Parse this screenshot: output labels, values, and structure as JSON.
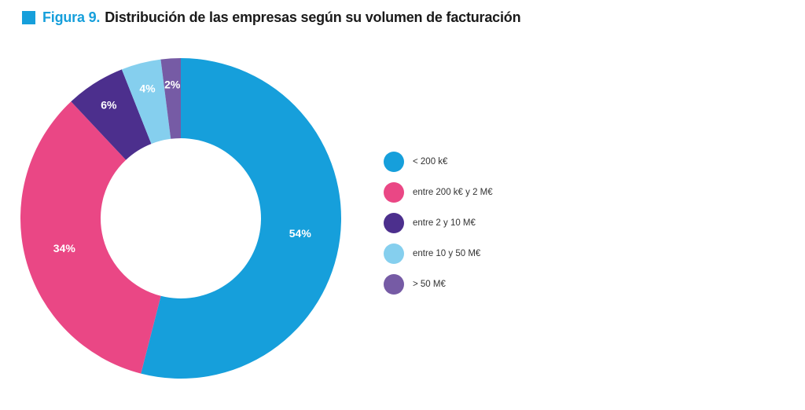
{
  "header": {
    "figure_label": "Figura 9.",
    "title": "Distribución de las empresas según su volumen de facturación",
    "accent_color": "#169fdb"
  },
  "chart_data": {
    "type": "pie",
    "donut": true,
    "title": "Distribución de las empresas según su volumen de facturación",
    "legend_position": "right",
    "slices": [
      {
        "name": "< 200 k€",
        "value": 54,
        "label": "54%",
        "color": "#169fdb"
      },
      {
        "name": "entre 200 k€ y 2 M€",
        "value": 34,
        "label": "34%",
        "color": "#ea4785"
      },
      {
        "name": "entre 2 y 10 M€",
        "value": 6,
        "label": "6%",
        "color": "#4c2f8d"
      },
      {
        "name": "entre 10 y 50 M€",
        "value": 4,
        "label": "4%",
        "color": "#85cfee"
      },
      {
        "name": "> 50 M€",
        "value": 2,
        "label": "2%",
        "color": "#765ba5"
      }
    ]
  }
}
